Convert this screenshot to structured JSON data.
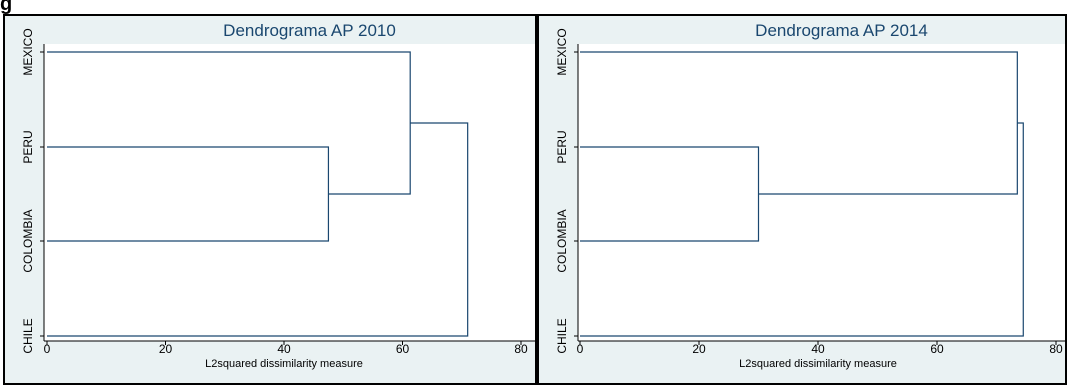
{
  "heading_fragment": "g",
  "chart_data": [
    {
      "type": "dendrogram",
      "title": "Dendrograma AP 2010",
      "xlabel": "L2squared dissimilarity measure",
      "xlim": [
        0,
        80
      ],
      "xticks": [
        "0",
        "20",
        "40",
        "60",
        "80"
      ],
      "leaves": [
        "MEXICO",
        "PERU",
        "COLOMBIA",
        "CHILE"
      ],
      "merges": [
        {
          "left": "PERU",
          "right": "COLOMBIA",
          "height": 47.5
        },
        {
          "left": "MEXICO",
          "right": "PERU+COLOMBIA",
          "height": 61.3
        },
        {
          "left": "MEXICO+PERU+COLOMBIA",
          "right": "CHILE",
          "height": 71
        }
      ],
      "colors": {
        "plot_bg": "#ffffff",
        "outer_bg": "#eaf2f3",
        "link": "#1a476f",
        "title": "#1a476f"
      }
    },
    {
      "type": "dendrogram",
      "title": "Dendrograma AP 2014",
      "xlabel": "L2squared dissimilarity measure",
      "xlim": [
        0,
        80
      ],
      "xticks": [
        "0",
        "20",
        "40",
        "60",
        "80"
      ],
      "leaves": [
        "MEXICO",
        "PERU",
        "COLOMBIA",
        "CHILE"
      ],
      "merges": [
        {
          "left": "PERU",
          "right": "COLOMBIA",
          "height": 30
        },
        {
          "left": "MEXICO",
          "right": "PERU+COLOMBIA",
          "height": 73.5
        },
        {
          "left": "MEXICO+PERU+COLOMBIA",
          "right": "CHILE",
          "height": 74.5
        }
      ],
      "colors": {
        "plot_bg": "#ffffff",
        "outer_bg": "#eaf2f3",
        "link": "#1a476f",
        "title": "#1a476f"
      }
    }
  ]
}
